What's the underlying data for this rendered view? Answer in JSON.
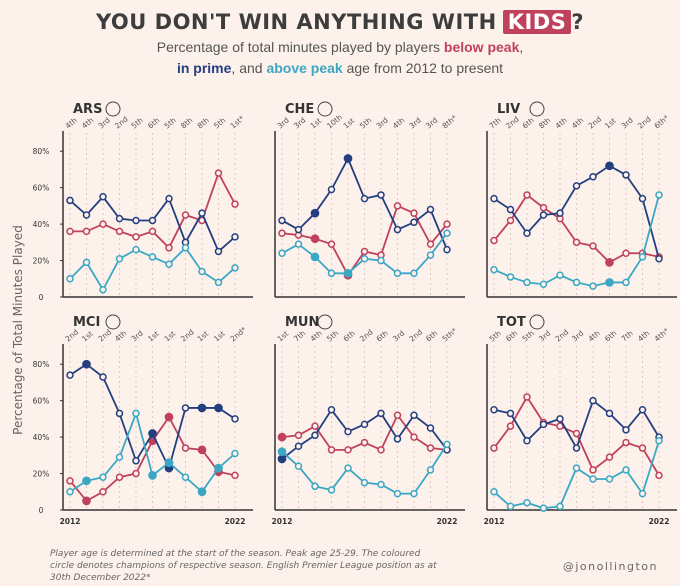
{
  "header": {
    "title": [
      "YOU DON'T WIN ANYTHING WITH",
      "KIDS",
      "?"
    ],
    "subtitle": [
      "Percentage of total minutes played by players ",
      ",",
      " ",
      ", and ",
      " age from 2012 to present"
    ]
  },
  "ylabel": "Percentage of Total Minutes Played",
  "footnote": "Player age is determined at the start of the season. Peak age 25-29. The coloured circle denotes champions of respective season. English Premier League position as at 30th December 2022*",
  "handle": "@jonollington",
  "chart_data": [
    {
      "type": "line",
      "title": "ARS",
      "x": [
        2012,
        2013,
        2014,
        2015,
        2016,
        2017,
        2018,
        2019,
        2020,
        2021,
        2022
      ],
      "xlim": [
        2012,
        2022
      ],
      "positions": [
        "4th",
        "4th",
        "3rd",
        "2nd",
        "5th",
        "6th",
        "5th",
        "8th",
        "8th",
        "5th",
        "1st*"
      ],
      "champions": [],
      "ylim": [
        0,
        90
      ],
      "yticks": [
        0,
        {
          "value": 20,
          "label": "20%"
        },
        {
          "value": 40,
          "label": "40%"
        },
        {
          "value": 60,
          "label": "60%"
        },
        {
          "value": 80,
          "label": "80%"
        }
      ],
      "series": [
        {
          "name": "below peak",
          "color": "#c0415c",
          "values": [
            36,
            36,
            40,
            36,
            33,
            36,
            27,
            45,
            42,
            68,
            51
          ]
        },
        {
          "name": "in prime",
          "color": "#233f7f",
          "values": [
            53,
            45,
            55,
            43,
            42,
            42,
            54,
            30,
            46,
            25,
            33
          ]
        },
        {
          "name": "above peak",
          "color": "#3aa8c4",
          "values": [
            10,
            19,
            4,
            21,
            26,
            22,
            18,
            27,
            14,
            8,
            16
          ]
        }
      ]
    },
    {
      "type": "line",
      "title": "CHE",
      "x": [
        2012,
        2013,
        2014,
        2015,
        2016,
        2017,
        2018,
        2019,
        2020,
        2021,
        2022
      ],
      "xlim": [
        2012,
        2022
      ],
      "positions": [
        "3rd",
        "3rd",
        "1st",
        "10th",
        "1st",
        "5th",
        "3rd",
        "4th",
        "3rd",
        "3rd",
        "8th*"
      ],
      "champions": [
        2014,
        2016
      ],
      "ylim": [
        0,
        90
      ],
      "series": [
        {
          "name": "below peak",
          "color": "#c0415c",
          "values": [
            35,
            34,
            32,
            29,
            12,
            25,
            23,
            50,
            46,
            29,
            40
          ]
        },
        {
          "name": "in prime",
          "color": "#233f7f",
          "values": [
            42,
            37,
            46,
            59,
            76,
            54,
            56,
            37,
            41,
            48,
            26
          ]
        },
        {
          "name": "above peak",
          "color": "#3aa8c4",
          "values": [
            24,
            29,
            22,
            13,
            13,
            21,
            20,
            13,
            13,
            23,
            35
          ]
        }
      ]
    },
    {
      "type": "line",
      "title": "LIV",
      "x": [
        2012,
        2013,
        2014,
        2015,
        2016,
        2017,
        2018,
        2019,
        2020,
        2021,
        2022
      ],
      "xlim": [
        2012,
        2022
      ],
      "positions": [
        "7th",
        "2nd",
        "6th",
        "8th",
        "4th",
        "4th",
        "2nd",
        "1st",
        "3rd",
        "2nd",
        "6th*"
      ],
      "champions": [
        2019
      ],
      "ylim": [
        0,
        90
      ],
      "series": [
        {
          "name": "below peak",
          "color": "#c0415c",
          "values": [
            31,
            42,
            56,
            49,
            43,
            30,
            28,
            19,
            24,
            24,
            22
          ]
        },
        {
          "name": "in prime",
          "color": "#233f7f",
          "values": [
            54,
            48,
            35,
            45,
            46,
            61,
            66,
            72,
            67,
            54,
            21
          ]
        },
        {
          "name": "above peak",
          "color": "#3aa8c4",
          "values": [
            15,
            11,
            8,
            7,
            12,
            8,
            6,
            8,
            8,
            22,
            56
          ]
        }
      ]
    },
    {
      "type": "line",
      "title": "MCI",
      "x": [
        2012,
        2013,
        2014,
        2015,
        2016,
        2017,
        2018,
        2019,
        2020,
        2021,
        2022
      ],
      "xlim": [
        2012,
        2022
      ],
      "positions": [
        "2nd",
        "1st",
        "2nd",
        "4th",
        "3rd",
        "1st",
        "1st",
        "2nd",
        "1st",
        "1st",
        "2nd*"
      ],
      "champions": [
        2013,
        2017,
        2018,
        2020,
        2021
      ],
      "ylim": [
        0,
        90
      ],
      "yticks": [
        0,
        {
          "value": 20,
          "label": "20%"
        },
        {
          "value": 40,
          "label": "40%"
        },
        {
          "value": 60,
          "label": "60%"
        },
        {
          "value": 80,
          "label": "80%"
        }
      ],
      "xticks": [
        2012,
        2022
      ],
      "series": [
        {
          "name": "below peak",
          "color": "#c0415c",
          "values": [
            16,
            5,
            10,
            18,
            20,
            38,
            51,
            34,
            33,
            21,
            19
          ]
        },
        {
          "name": "in prime",
          "color": "#233f7f",
          "values": [
            74,
            80,
            73,
            53,
            27,
            42,
            23,
            56,
            56,
            56,
            50
          ]
        },
        {
          "name": "above peak",
          "color": "#3aa8c4",
          "values": [
            10,
            16,
            18,
            29,
            53,
            19,
            26,
            18,
            10,
            23,
            31
          ]
        }
      ]
    },
    {
      "type": "line",
      "title": "MUN",
      "x": [
        2012,
        2013,
        2014,
        2015,
        2016,
        2017,
        2018,
        2019,
        2020,
        2021,
        2022
      ],
      "xlim": [
        2012,
        2022
      ],
      "positions": [
        "1st",
        "7th",
        "4th",
        "5th",
        "6th",
        "2nd",
        "6th",
        "3rd",
        "2nd",
        "6th",
        "5th*"
      ],
      "champions": [
        2012
      ],
      "ylim": [
        0,
        90
      ],
      "xticks": [
        2012,
        2022
      ],
      "series": [
        {
          "name": "below peak",
          "color": "#c0415c",
          "values": [
            40,
            41,
            46,
            33,
            33,
            37,
            33,
            52,
            40,
            34,
            33
          ]
        },
        {
          "name": "in prime",
          "color": "#233f7f",
          "values": [
            28,
            35,
            41,
            55,
            43,
            47,
            53,
            39,
            52,
            45,
            33
          ]
        },
        {
          "name": "above peak",
          "color": "#3aa8c4",
          "values": [
            32,
            24,
            13,
            11,
            23,
            15,
            14,
            9,
            9,
            22,
            36
          ]
        }
      ]
    },
    {
      "type": "line",
      "title": "TOT",
      "x": [
        2012,
        2013,
        2014,
        2015,
        2016,
        2017,
        2018,
        2019,
        2020,
        2021,
        2022
      ],
      "xlim": [
        2012,
        2022
      ],
      "positions": [
        "5th",
        "6th",
        "5th",
        "3rd",
        "2nd",
        "3rd",
        "4th",
        "6th",
        "7th",
        "4th",
        "4th*"
      ],
      "champions": [],
      "ylim": [
        0,
        90
      ],
      "xticks": [
        2012,
        2022
      ],
      "series": [
        {
          "name": "below peak",
          "color": "#c0415c",
          "values": [
            34,
            46,
            62,
            48,
            46,
            42,
            22,
            29,
            37,
            34,
            19
          ]
        },
        {
          "name": "in prime",
          "color": "#233f7f",
          "values": [
            55,
            53,
            38,
            47,
            50,
            34,
            60,
            53,
            44,
            55,
            40
          ]
        },
        {
          "name": "above peak",
          "color": "#3aa8c4",
          "values": [
            10,
            2,
            4,
            1,
            2,
            23,
            17,
            17,
            22,
            9,
            38
          ]
        }
      ]
    }
  ]
}
